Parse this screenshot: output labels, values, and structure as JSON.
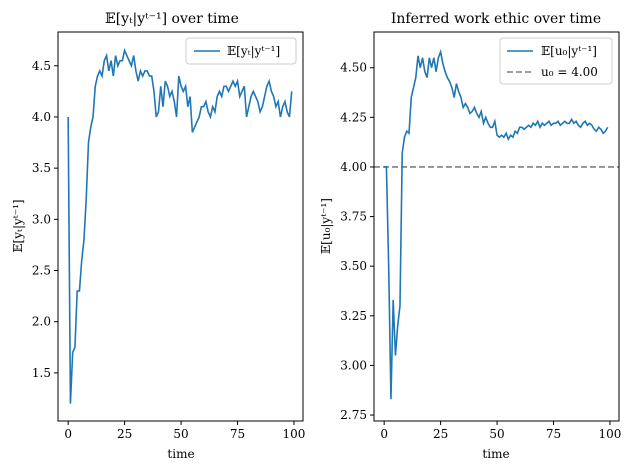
{
  "chart_data": [
    {
      "type": "line",
      "title": "𝔼[yₜ|yᵗ⁻¹] over time",
      "xlabel": "time",
      "ylabel": "𝔼[yₜ|yᵗ⁻¹]",
      "xlim": [
        -4.5,
        104
      ],
      "ylim": [
        1.03,
        4.83
      ],
      "xticks": [
        0,
        25,
        50,
        75,
        100
      ],
      "yticks": [
        1.5,
        2.0,
        2.5,
        3.0,
        3.5,
        4.0,
        4.5
      ],
      "ytick_labels": [
        "1.5",
        "2.0",
        "2.5",
        "3.0",
        "3.5",
        "4.0",
        "4.5"
      ],
      "legend": "top-right",
      "series": [
        {
          "name": "𝔼[yₜ|yᵗ⁻¹]",
          "color": "#1f77b4",
          "x": [
            0,
            1,
            2,
            3,
            4,
            5,
            6,
            7,
            8,
            9,
            10,
            11,
            12,
            13,
            14,
            15,
            16,
            17,
            18,
            19,
            20,
            21,
            22,
            23,
            24,
            25,
            26,
            27,
            28,
            29,
            30,
            31,
            32,
            33,
            34,
            35,
            36,
            37,
            38,
            39,
            40,
            41,
            42,
            43,
            44,
            45,
            46,
            47,
            48,
            49,
            50,
            51,
            52,
            53,
            54,
            55,
            56,
            57,
            58,
            59,
            60,
            61,
            62,
            63,
            64,
            65,
            66,
            67,
            68,
            69,
            70,
            71,
            72,
            73,
            74,
            75,
            76,
            77,
            78,
            79,
            80,
            81,
            82,
            83,
            84,
            85,
            86,
            87,
            88,
            89,
            90,
            91,
            92,
            93,
            94,
            95,
            96,
            97,
            98,
            99
          ],
          "values": [
            4.0,
            1.2,
            1.7,
            1.75,
            2.3,
            2.3,
            2.6,
            2.8,
            3.2,
            3.75,
            3.9,
            4.0,
            4.3,
            4.4,
            4.45,
            4.4,
            4.55,
            4.6,
            4.45,
            4.55,
            4.4,
            4.6,
            4.5,
            4.55,
            4.55,
            4.65,
            4.6,
            4.55,
            4.5,
            4.6,
            4.45,
            4.35,
            4.45,
            4.4,
            4.45,
            4.45,
            4.4,
            4.4,
            4.25,
            4.0,
            4.05,
            4.3,
            4.1,
            4.35,
            4.3,
            4.2,
            4.25,
            4.15,
            4.0,
            4.4,
            4.3,
            4.25,
            4.3,
            4.1,
            4.2,
            3.85,
            3.9,
            3.95,
            4.0,
            4.1,
            4.1,
            4.15,
            4.05,
            4.0,
            4.1,
            4.05,
            4.2,
            4.25,
            4.2,
            4.3,
            4.3,
            4.25,
            4.3,
            4.35,
            4.3,
            4.35,
            4.2,
            4.25,
            4.3,
            4.0,
            4.1,
            4.2,
            4.25,
            4.2,
            4.15,
            4.05,
            4.1,
            4.2,
            4.3,
            4.35,
            4.25,
            4.2,
            4.1,
            4.15,
            4.0,
            4.1,
            4.15,
            4.05,
            4.0,
            4.25
          ]
        }
      ]
    },
    {
      "type": "line",
      "title": "Inferred work ethic over time",
      "xlabel": "time",
      "ylabel": "𝔼[u₀|yᵗ⁻¹]",
      "xlim": [
        -4.5,
        104
      ],
      "ylim": [
        2.72,
        4.68
      ],
      "xticks": [
        0,
        25,
        50,
        75,
        100
      ],
      "yticks": [
        2.75,
        3.0,
        3.25,
        3.5,
        3.75,
        4.0,
        4.25,
        4.5
      ],
      "ytick_labels": [
        "2.75",
        "3.00",
        "3.25",
        "3.50",
        "3.75",
        "4.00",
        "4.25",
        "4.50"
      ],
      "legend": "top-right",
      "reference_line": {
        "name": "u₀ = 4.00",
        "y": 4.0,
        "color": "#7f7f7f"
      },
      "series": [
        {
          "name": "𝔼[u₀|yᵗ⁻¹]",
          "color": "#1f77b4",
          "x": [
            0,
            1,
            2,
            3,
            4,
            5,
            6,
            7,
            8,
            9,
            10,
            11,
            12,
            13,
            14,
            15,
            16,
            17,
            18,
            19,
            20,
            21,
            22,
            23,
            24,
            25,
            26,
            27,
            28,
            29,
            30,
            31,
            32,
            33,
            34,
            35,
            36,
            37,
            38,
            39,
            40,
            41,
            42,
            43,
            44,
            45,
            46,
            47,
            48,
            49,
            50,
            51,
            52,
            53,
            54,
            55,
            56,
            57,
            58,
            59,
            60,
            61,
            62,
            63,
            64,
            65,
            66,
            67,
            68,
            69,
            70,
            71,
            72,
            73,
            74,
            75,
            76,
            77,
            78,
            79,
            80,
            81,
            82,
            83,
            84,
            85,
            86,
            87,
            88,
            89,
            90,
            91,
            92,
            93,
            94,
            95,
            96,
            97,
            98,
            99
          ],
          "values": [
            4.0,
            4.0,
            3.5,
            2.83,
            3.33,
            3.05,
            3.2,
            3.3,
            4.07,
            4.15,
            4.18,
            4.17,
            4.35,
            4.4,
            4.45,
            4.56,
            4.5,
            4.55,
            4.48,
            4.45,
            4.55,
            4.5,
            4.55,
            4.48,
            4.55,
            4.58,
            4.52,
            4.48,
            4.45,
            4.43,
            4.4,
            4.35,
            4.42,
            4.38,
            4.35,
            4.3,
            4.32,
            4.3,
            4.27,
            4.28,
            4.3,
            4.27,
            4.25,
            4.28,
            4.22,
            4.25,
            4.22,
            4.2,
            4.2,
            4.23,
            4.16,
            4.15,
            4.16,
            4.15,
            4.17,
            4.14,
            4.16,
            4.15,
            4.18,
            4.17,
            4.2,
            4.2,
            4.19,
            4.2,
            4.21,
            4.2,
            4.22,
            4.21,
            4.23,
            4.2,
            4.22,
            4.21,
            4.22,
            4.23,
            4.21,
            4.22,
            4.22,
            4.23,
            4.21,
            4.22,
            4.23,
            4.22,
            4.22,
            4.24,
            4.22,
            4.23,
            4.21,
            4.2,
            4.22,
            4.23,
            4.21,
            4.22,
            4.21,
            4.19,
            4.18,
            4.2,
            4.19,
            4.17,
            4.18,
            4.2
          ]
        }
      ]
    }
  ]
}
